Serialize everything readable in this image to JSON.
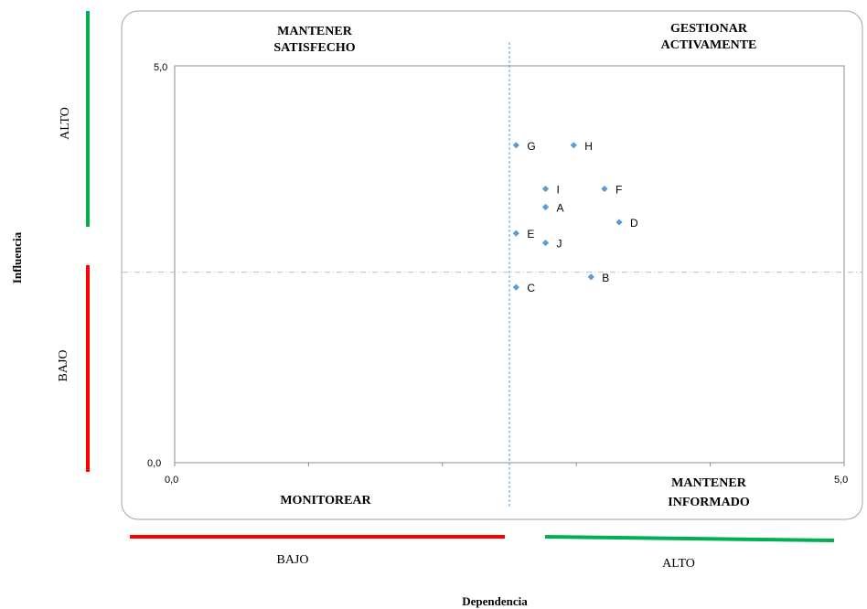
{
  "chart_data": {
    "type": "scatter",
    "xlabel": "Dependencia",
    "ylabel": "Influencia",
    "xlim": [
      0,
      5
    ],
    "ylim": [
      0,
      5
    ],
    "x_tick_labels": [
      "0,0",
      "5,0"
    ],
    "y_tick_labels": [
      "0,0",
      "5,0"
    ],
    "threshold_x": 2.5,
    "threshold_y": 2.4,
    "grid": false,
    "points": [
      {
        "label": "G",
        "x": 2.55,
        "y": 4.0
      },
      {
        "label": "H",
        "x": 2.98,
        "y": 4.0
      },
      {
        "label": "I",
        "x": 2.77,
        "y": 3.45
      },
      {
        "label": "F",
        "x": 3.21,
        "y": 3.45
      },
      {
        "label": "A",
        "x": 2.77,
        "y": 3.22
      },
      {
        "label": "D",
        "x": 3.32,
        "y": 3.03
      },
      {
        "label": "E",
        "x": 2.55,
        "y": 2.89
      },
      {
        "label": "J",
        "x": 2.77,
        "y": 2.77
      },
      {
        "label": "B",
        "x": 3.11,
        "y": 2.34
      },
      {
        "label": "C",
        "x": 2.55,
        "y": 2.21
      }
    ],
    "point_color": "#5b9bd5"
  },
  "quadrants": {
    "top_left": [
      "MANTENER",
      "SATISFECHO"
    ],
    "top_right": [
      "GESTIONAR",
      "ACTIVAMENTE"
    ],
    "bottom_left": [
      "MONITOREAR"
    ],
    "bottom_right": [
      "MANTENER",
      "INFORMADO"
    ]
  },
  "scale_labels": {
    "y_high": "ALTO",
    "y_low": "BAJO",
    "x_low": "BAJO",
    "x_high": "ALTO"
  },
  "colors": {
    "high": "#00b050",
    "low": "#ff0000",
    "threshold_line": "#5b9bd5"
  }
}
